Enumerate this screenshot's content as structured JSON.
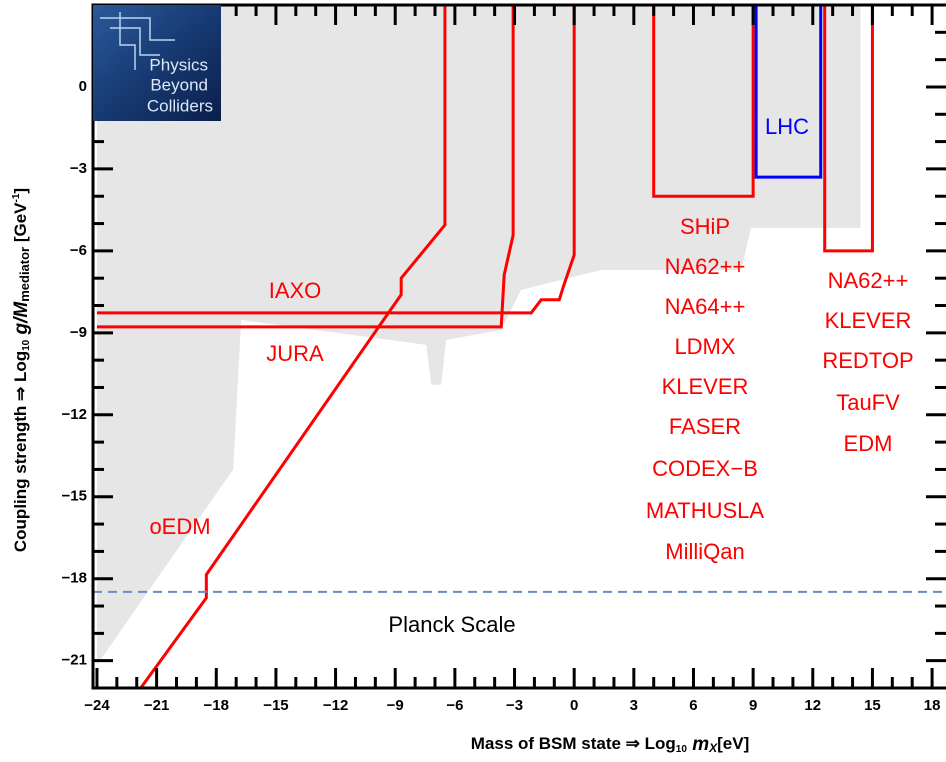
{
  "chart_data": {
    "type": "line",
    "x_label": [
      "Mass of BSM state ⇒ Log",
      "10",
      " m",
      "X",
      "[eV]"
    ],
    "y_label": [
      "Coupling strength ⇒ Log",
      "10",
      " g/M",
      "mediator",
      " [GeV",
      "-1",
      "]"
    ],
    "xlim": [
      -24.2,
      18.7
    ],
    "ylim": [
      -22,
      3
    ],
    "xticks": [
      {
        "value": -24,
        "label": "−24"
      },
      {
        "value": -21,
        "label": "−21"
      },
      {
        "value": -18,
        "label": "−18"
      },
      {
        "value": -15,
        "label": "−15"
      },
      {
        "value": -12,
        "label": "−12"
      },
      {
        "value": -9,
        "label": "−9"
      },
      {
        "value": -6,
        "label": "−6"
      },
      {
        "value": -3,
        "label": "−3"
      },
      0,
      3,
      6,
      9,
      12,
      15,
      18
    ],
    "yticks": [
      {
        "value": -21,
        "label": "−21"
      },
      {
        "value": -18,
        "label": "−18"
      },
      {
        "value": -15,
        "label": "−15"
      },
      {
        "value": -12,
        "label": "−12"
      },
      {
        "value": -9,
        "label": "−9"
      },
      {
        "value": -6,
        "label": "−6"
      },
      {
        "value": -3,
        "label": "−3"
      },
      0
    ],
    "regions": [
      {
        "color": "#e6e6e6",
        "x": [
          -24,
          14.4,
          14.4,
          8.9,
          8.4,
          1.36,
          -2.67,
          -3.67,
          -6.44,
          -6.69,
          -7.19,
          -7.44,
          -16.75,
          -17.15,
          -24
        ],
        "y": [
          3,
          3,
          -5.16,
          -5.16,
          -6.7,
          -6.7,
          -7.43,
          -8.89,
          -9.26,
          -10.9,
          -10.9,
          -9.44,
          -8.53,
          -14.0,
          -21.15
        ]
      }
    ],
    "series": [
      {
        "color": "#ff0000",
        "x": [
          -21.8,
          -18.5,
          -18.5,
          -8.7,
          -8.7,
          -6.5,
          -6.5
        ],
        "y": [
          -22,
          -18.7,
          -17.85,
          -7.6,
          -7.0,
          -5.05,
          3
        ]
      },
      {
        "color": "#ff0000",
        "x": [
          -24,
          -2.16,
          -1.66,
          -0.75,
          -0.55,
          0,
          0
        ],
        "y": [
          -8.27,
          -8.27,
          -7.79,
          -7.79,
          -7.32,
          -6.15,
          3
        ]
      },
      {
        "color": "#ff0000",
        "x": [
          -24,
          -3.67,
          -3.52,
          -3.07,
          -3.07
        ],
        "y": [
          -8.78,
          -8.78,
          -6.88,
          -5.42,
          3
        ]
      },
      {
        "color": "#ff0000",
        "x": [
          4,
          4,
          9,
          9
        ],
        "y": [
          3,
          -4,
          -4,
          3
        ]
      },
      {
        "color": "#0000ff",
        "x": [
          9.15,
          9.15,
          12.4,
          12.4
        ],
        "y": [
          3,
          -3.3,
          -3.3,
          3
        ]
      },
      {
        "color": "#ff0000",
        "x": [
          12.6,
          12.6,
          15,
          15
        ],
        "y": [
          3,
          -6,
          -6,
          3
        ]
      }
    ],
    "hlines": [
      {
        "y": -18.48,
        "color": "#6b8cbf",
        "dash": true
      }
    ],
    "annotations": [
      {
        "text": "IAXO",
        "color": "#ff0000"
      },
      {
        "text": "JURA",
        "color": "#ff0000"
      },
      {
        "text": "oEDM",
        "color": "#ff0000"
      },
      {
        "text": "SHiP",
        "color": "#ff0000"
      },
      {
        "text": "NA62++",
        "color": "#ff0000"
      },
      {
        "text": "NA64++",
        "color": "#ff0000"
      },
      {
        "text": "LDMX",
        "color": "#ff0000"
      },
      {
        "text": "KLEVER",
        "color": "#ff0000"
      },
      {
        "text": "FASER",
        "color": "#ff0000"
      },
      {
        "text": "CODEX−B",
        "color": "#ff0000"
      },
      {
        "text": "MATHUSLA",
        "color": "#ff0000"
      },
      {
        "text": "MilliQan",
        "color": "#ff0000"
      },
      {
        "text": "NA62++",
        "color": "#ff0000"
      },
      {
        "text": "KLEVER",
        "color": "#ff0000"
      },
      {
        "text": "REDTOP",
        "color": "#ff0000"
      },
      {
        "text": "TauFV",
        "color": "#ff0000"
      },
      {
        "text": "EDM",
        "color": "#ff0000"
      },
      {
        "text": "LHC",
        "color": "#0000ff"
      },
      {
        "text": "Planck Scale",
        "color": "#000000"
      }
    ]
  },
  "logo": {
    "lines": [
      "Physics",
      "Beyond",
      "Colliders"
    ]
  }
}
